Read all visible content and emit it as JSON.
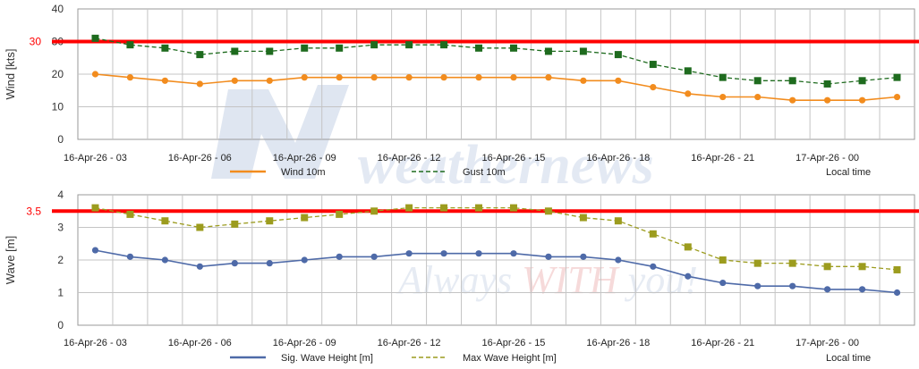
{
  "watermark": {
    "brand": "weathernews",
    "tagline_a": "Always ",
    "tagline_b": "WITH",
    "tagline_c": " you!"
  },
  "chart_data": [
    {
      "type": "line",
      "id": "wind",
      "ylabel": "Wind [kts]",
      "ylim": [
        0,
        40
      ],
      "yticks": [
        0,
        10,
        20,
        30,
        40
      ],
      "grid": true,
      "x": [
        "16-Apr-26 - 03",
        "16-Apr-26 - 04",
        "16-Apr-26 - 05",
        "16-Apr-26 - 06",
        "16-Apr-26 - 07",
        "16-Apr-26 - 08",
        "16-Apr-26 - 09",
        "16-Apr-26 - 10",
        "16-Apr-26 - 11",
        "16-Apr-26 - 12",
        "16-Apr-26 - 13",
        "16-Apr-26 - 14",
        "16-Apr-26 - 15",
        "16-Apr-26 - 16",
        "16-Apr-26 - 17",
        "16-Apr-26 - 18",
        "16-Apr-26 - 19",
        "16-Apr-26 - 20",
        "16-Apr-26 - 21",
        "16-Apr-26 - 22",
        "16-Apr-26 - 23",
        "17-Apr-26 - 00",
        "17-Apr-26 - 01",
        "17-Apr-26 - 02"
      ],
      "xtick_labels": [
        "16-Apr-26 - 03",
        "16-Apr-26 - 06",
        "16-Apr-26 - 09",
        "16-Apr-26 - 12",
        "16-Apr-26 - 15",
        "16-Apr-26 - 18",
        "16-Apr-26 - 21",
        "17-Apr-26 - 00"
      ],
      "threshold": {
        "value": 30,
        "label": "30",
        "color": "#ff0000"
      },
      "series": [
        {
          "name": "Wind 10m",
          "color": "#f28c1e",
          "style": "solid",
          "marker": "circle",
          "values": [
            20,
            19,
            18,
            17,
            18,
            18,
            19,
            19,
            19,
            19,
            19,
            19,
            19,
            19,
            18,
            18,
            16,
            14,
            13,
            13,
            12,
            12,
            12,
            13
          ]
        },
        {
          "name": "Gust 10m",
          "color": "#1e6b1e",
          "style": "dashed",
          "marker": "square",
          "values": [
            31,
            29,
            28,
            26,
            27,
            27,
            28,
            28,
            29,
            29,
            29,
            28,
            28,
            27,
            27,
            26,
            23,
            21,
            19,
            18,
            18,
            17,
            18,
            19
          ]
        }
      ],
      "legend_note": "Local time",
      "legend": "bottom"
    },
    {
      "type": "line",
      "id": "wave",
      "ylabel": "Wave [m]",
      "ylim": [
        0,
        4
      ],
      "yticks": [
        0,
        1,
        2,
        3,
        4
      ],
      "grid": true,
      "x": [
        "16-Apr-26 - 03",
        "16-Apr-26 - 04",
        "16-Apr-26 - 05",
        "16-Apr-26 - 06",
        "16-Apr-26 - 07",
        "16-Apr-26 - 08",
        "16-Apr-26 - 09",
        "16-Apr-26 - 10",
        "16-Apr-26 - 11",
        "16-Apr-26 - 12",
        "16-Apr-26 - 13",
        "16-Apr-26 - 14",
        "16-Apr-26 - 15",
        "16-Apr-26 - 16",
        "16-Apr-26 - 17",
        "16-Apr-26 - 18",
        "16-Apr-26 - 19",
        "16-Apr-26 - 20",
        "16-Apr-26 - 21",
        "16-Apr-26 - 22",
        "16-Apr-26 - 23",
        "17-Apr-26 - 00",
        "17-Apr-26 - 01",
        "17-Apr-26 - 02"
      ],
      "xtick_labels": [
        "16-Apr-26 - 03",
        "16-Apr-26 - 06",
        "16-Apr-26 - 09",
        "16-Apr-26 - 12",
        "16-Apr-26 - 15",
        "16-Apr-26 - 18",
        "16-Apr-26 - 21",
        "17-Apr-26 - 00"
      ],
      "threshold": {
        "value": 3.5,
        "label": "3.5",
        "color": "#ff0000"
      },
      "series": [
        {
          "name": "Sig. Wave Height [m]",
          "color": "#4e6aa8",
          "style": "solid",
          "marker": "circle",
          "values": [
            2.3,
            2.1,
            2.0,
            1.8,
            1.9,
            1.9,
            2.0,
            2.1,
            2.1,
            2.2,
            2.2,
            2.2,
            2.2,
            2.1,
            2.1,
            2.0,
            1.8,
            1.5,
            1.3,
            1.2,
            1.2,
            1.1,
            1.1,
            1.0
          ]
        },
        {
          "name": "Max Wave Height [m]",
          "color": "#9c9c1e",
          "style": "dashed",
          "marker": "square",
          "values": [
            3.6,
            3.4,
            3.2,
            3.0,
            3.1,
            3.2,
            3.3,
            3.4,
            3.5,
            3.6,
            3.6,
            3.6,
            3.6,
            3.5,
            3.3,
            3.2,
            2.8,
            2.4,
            2.0,
            1.9,
            1.9,
            1.8,
            1.8,
            1.7
          ]
        }
      ],
      "legend_note": "Local time",
      "legend": "bottom"
    }
  ]
}
